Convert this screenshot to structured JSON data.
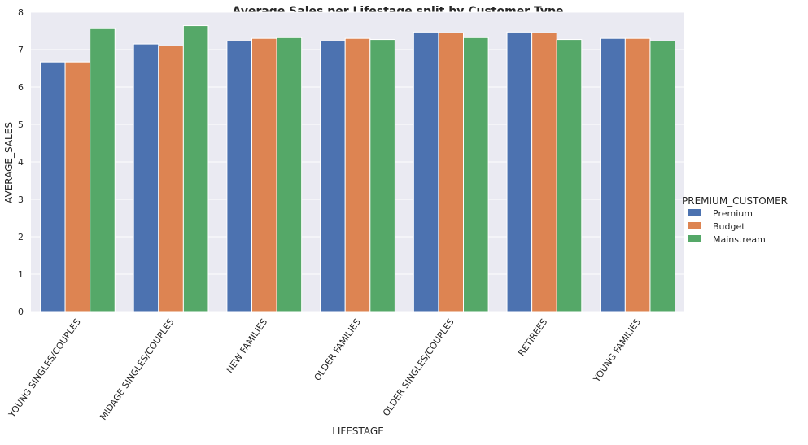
{
  "chart_data": {
    "type": "bar",
    "title": "Average Sales per Lifestage split by Customer Type",
    "xlabel": "LIFESTAGE",
    "ylabel": "AVERAGE_SALES",
    "ylim": [
      0,
      8
    ],
    "yticks": [
      0,
      1,
      2,
      3,
      4,
      5,
      6,
      7,
      8
    ],
    "grid": true,
    "legend_position": "right",
    "legend_title": "PREMIUM_CUSTOMER",
    "categories": [
      "YOUNG SINGLES/COUPLES",
      "MIDAGE SINGLES/COUPLES",
      "NEW FAMILIES",
      "OLDER FAMILIES",
      "OLDER SINGLES/COUPLES",
      "RETIREES",
      "YOUNG FAMILIES"
    ],
    "series": [
      {
        "name": "Premium",
        "color": "#4c72b0",
        "values": [
          6.67,
          7.15,
          7.23,
          7.23,
          7.47,
          7.47,
          7.3
        ]
      },
      {
        "name": "Budget",
        "color": "#dd8452",
        "values": [
          6.67,
          7.1,
          7.3,
          7.3,
          7.45,
          7.45,
          7.3
        ]
      },
      {
        "name": "Mainstream",
        "color": "#55a868",
        "values": [
          7.56,
          7.64,
          7.32,
          7.27,
          7.32,
          7.27,
          7.23
        ]
      }
    ],
    "colors": {
      "plot_background": "#eaeaf2",
      "grid": "#ffffff"
    }
  }
}
